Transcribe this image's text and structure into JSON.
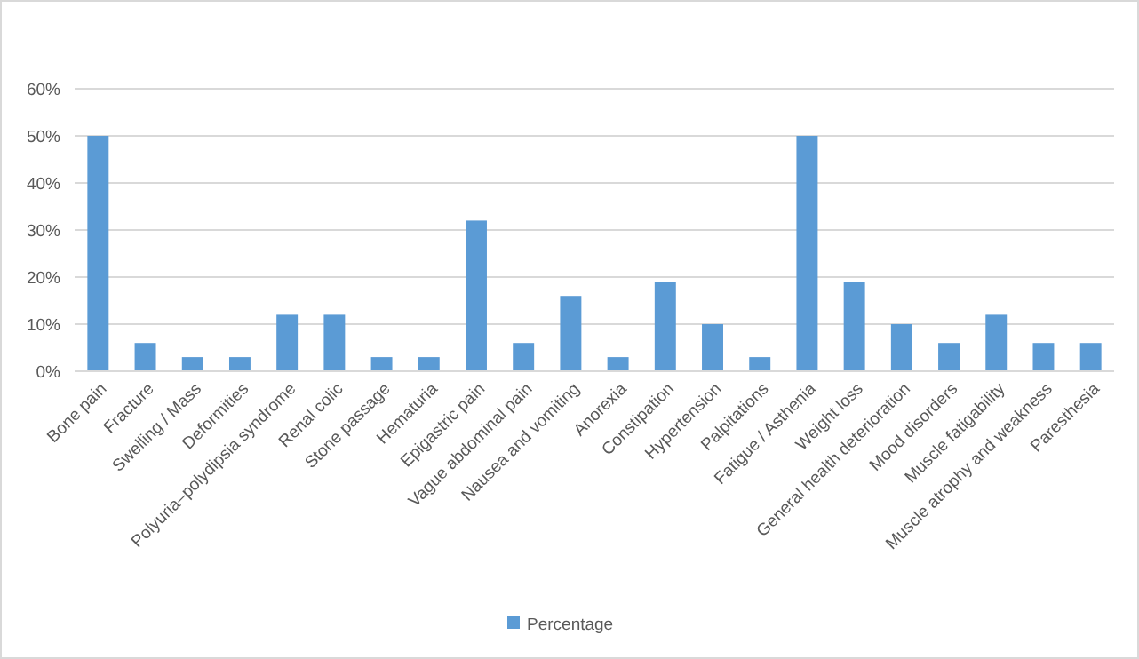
{
  "chart_data": {
    "type": "bar",
    "categories": [
      "Bone pain",
      "Fracture",
      "Swelling / Mass",
      "Deformities",
      "Polyuria–polydipsia syndrome",
      "Renal colic",
      "Stone passage",
      "Hematuria",
      "Epigastric pain",
      "Vague abdominal pain",
      "Nausea and vomiting",
      "Anorexia",
      "Constipation",
      "Hypertension",
      "Palpitations",
      "Fatigue / Asthenia",
      "Weight loss",
      "General health deterioration",
      "Mood disorders",
      "Muscle fatigability",
      "Muscle atrophy and weakness",
      "Paresthesia"
    ],
    "series": [
      {
        "name": "Percentage",
        "color": "#5b9bd5",
        "values": [
          50,
          6,
          3,
          3,
          12,
          12,
          3,
          3,
          32,
          6,
          16,
          3,
          19,
          10,
          3,
          50,
          19,
          10,
          6,
          12,
          6,
          6
        ]
      }
    ],
    "ylim": [
      0,
      60
    ],
    "yticks": [
      {
        "value": 0,
        "label": "0%"
      },
      {
        "value": 10,
        "label": "10%"
      },
      {
        "value": 20,
        "label": "20%"
      },
      {
        "value": 30,
        "label": "30%"
      },
      {
        "value": 40,
        "label": "40%"
      },
      {
        "value": 50,
        "label": "50%"
      },
      {
        "value": 60,
        "label": "60%"
      }
    ],
    "grid": "y",
    "legend": "bottom"
  }
}
